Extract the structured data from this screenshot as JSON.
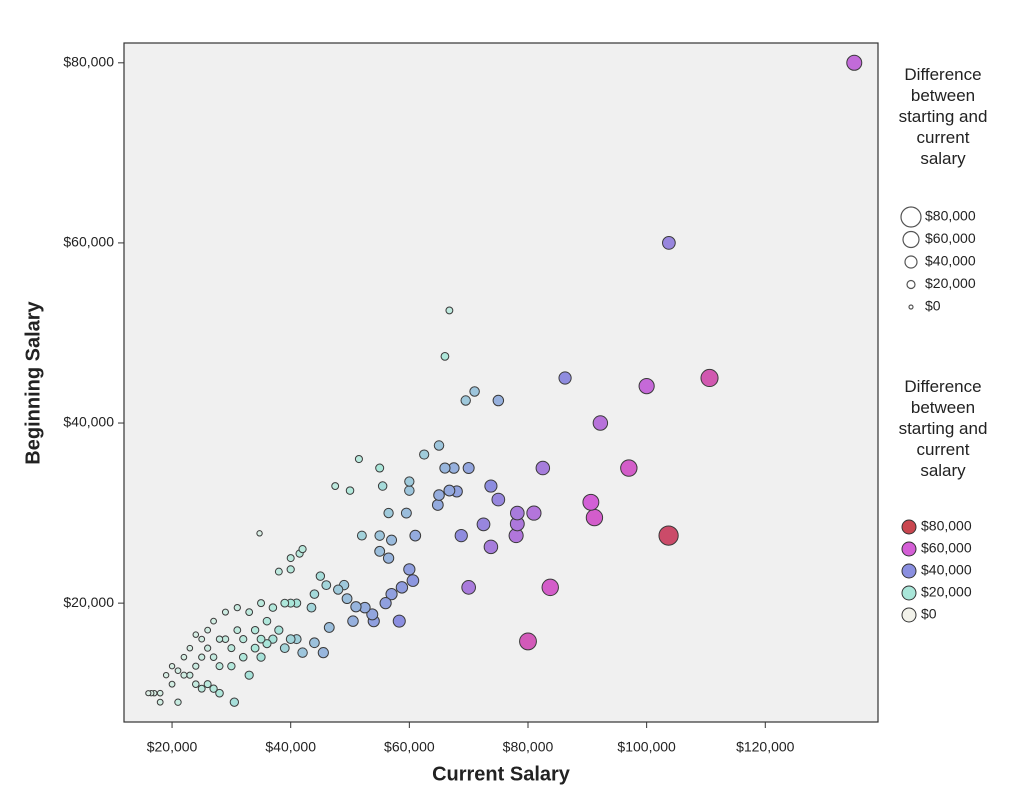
{
  "chart_data": {
    "type": "bubble",
    "x_label": "Current Salary",
    "y_label": "Beginning Salary",
    "xlim": [
      11900,
      139000
    ],
    "ylim": [
      6800,
      82200
    ],
    "xticks": [
      {
        "value": 20000,
        "label": "$20,000"
      },
      {
        "value": 40000,
        "label": "$40,000"
      },
      {
        "value": 60000,
        "label": "$60,000"
      },
      {
        "value": 80000,
        "label": "$80,000"
      },
      {
        "value": 100000,
        "label": "$100,000"
      },
      {
        "value": 120000,
        "label": "$120,000"
      }
    ],
    "yticks": [
      {
        "value": 20000,
        "label": "$20,000"
      },
      {
        "value": 40000,
        "label": "$40,000"
      },
      {
        "value": 60000,
        "label": "$60,000"
      },
      {
        "value": 80000,
        "label": "$80,000"
      }
    ],
    "x": [
      135000,
      103750,
      86250,
      100000,
      110600,
      92200,
      97000,
      82500,
      90600,
      91200,
      103700,
      81000,
      78200,
      78200,
      78000,
      83750,
      80000,
      70000,
      73750,
      72500,
      73750,
      75000,
      68750,
      66750,
      68000,
      67500,
      70000,
      65000,
      65000,
      60000,
      60600,
      58750,
      58300,
      57000,
      56000,
      54000,
      53750,
      52500,
      50500,
      51000,
      55000,
      55000,
      56500,
      56500,
      59500,
      60000,
      61000,
      62500,
      60000,
      64800,
      66000,
      66000,
      66750,
      69500,
      71000,
      75000,
      57000,
      52000,
      51500,
      50000,
      47500,
      55000,
      55500,
      46500,
      45500,
      44000,
      42000,
      41000,
      43500,
      44000,
      46000,
      48000,
      49000,
      49500,
      45000,
      40000,
      40000,
      41500,
      42000,
      34750,
      38000,
      40000,
      41000,
      39000,
      37000,
      38000,
      40000,
      37000,
      39000,
      30500,
      28000,
      26000,
      24000,
      22000,
      20000,
      18000,
      17000,
      16500,
      16000,
      18000,
      21000,
      25000,
      27000,
      20000,
      22000,
      24000,
      26000,
      28000,
      30000,
      32000,
      34000,
      36000,
      35000,
      33000,
      31000,
      29000,
      27000,
      25000,
      23000,
      21000,
      19000,
      24000,
      26000,
      28000,
      30000,
      32000,
      34000,
      36000,
      33000,
      35000,
      27000,
      29000,
      31000,
      25000,
      23000,
      35000
    ],
    "y": [
      80000,
      60000,
      45000,
      44100,
      45000,
      40000,
      35000,
      35000,
      31200,
      29500,
      27500,
      30000,
      30000,
      28800,
      27500,
      21750,
      15750,
      21750,
      26250,
      28750,
      33000,
      31500,
      27500,
      32500,
      32400,
      35000,
      35000,
      32000,
      37500,
      23750,
      22500,
      21750,
      18000,
      21000,
      20000,
      18000,
      18750,
      19500,
      18000,
      19600,
      25750,
      27500,
      25000,
      30000,
      30000,
      33500,
      27500,
      36500,
      32500,
      30900,
      35000,
      47400,
      52500,
      42500,
      43500,
      42500,
      27000,
      27500,
      36000,
      32500,
      33000,
      35000,
      33000,
      17300,
      14500,
      15600,
      14500,
      16000,
      19500,
      21000,
      22000,
      21500,
      22000,
      20500,
      23000,
      23750,
      25000,
      25500,
      26000,
      27750,
      23500,
      20000,
      20000,
      20000,
      19500,
      17000,
      16000,
      16000,
      15000,
      9000,
      10000,
      11000,
      11000,
      12000,
      11000,
      10000,
      10000,
      10000,
      10000,
      9000,
      9000,
      10500,
      10500,
      13000,
      14000,
      13000,
      15000,
      16000,
      15000,
      16000,
      17000,
      18000,
      20000,
      19000,
      19500,
      19000,
      18000,
      16000,
      15000,
      12500,
      12000,
      16500,
      17000,
      13000,
      13000,
      14000,
      15000,
      15500,
      12000,
      14000,
      14000,
      16000,
      17000,
      14000,
      12000,
      16000
    ],
    "sizes": [
      55000,
      43750,
      41250,
      55900,
      65600,
      52200,
      62000,
      47500,
      59400,
      61700,
      76200,
      51000,
      48200,
      49400,
      50500,
      62000,
      64250,
      48250,
      47500,
      43750,
      40750,
      43500,
      41250,
      34250,
      35600,
      32500,
      35000,
      33000,
      27500,
      36250,
      38100,
      37000,
      40300,
      36000,
      36000,
      36000,
      35000,
      33000,
      32500,
      31400,
      29250,
      27500,
      31500,
      26500,
      29500,
      26500,
      33500,
      26000,
      27500,
      33900,
      31000,
      18600,
      14250,
      27000,
      27500,
      32500,
      30000,
      24500,
      15500,
      17500,
      14500,
      20000,
      22500,
      29200,
      31000,
      28400,
      27500,
      25000,
      24000,
      23000,
      24000,
      26500,
      27000,
      29000,
      22000,
      16250,
      15000,
      16000,
      16000,
      7000,
      14500,
      20000,
      21000,
      19000,
      17500,
      21000,
      24000,
      21000,
      24000,
      21500,
      18000,
      15000,
      13000,
      10000,
      9000,
      8000,
      7000,
      6500,
      6000,
      9000,
      12000,
      14500,
      16500,
      7000,
      8000,
      11000,
      11000,
      12000,
      15000,
      16000,
      17000,
      18000,
      15000,
      14000,
      11500,
      10000,
      9000,
      9000,
      8000,
      8500,
      7000,
      7500,
      9000,
      15000,
      17000,
      18000,
      19000,
      20500,
      21000,
      21000,
      13000,
      13000,
      14000,
      11000,
      11000,
      19000
    ],
    "size_legend": {
      "title": "Difference between starting and current salary",
      "values": [
        80000,
        60000,
        40000,
        20000,
        0
      ],
      "labels": [
        "$80,000",
        "$60,000",
        "$40,000",
        "$20,000",
        "$0"
      ]
    },
    "color_legend": {
      "title": "Difference between starting and current salary",
      "values": [
        80000,
        60000,
        40000,
        20000,
        0
      ],
      "labels": [
        "$80,000",
        "$60,000",
        "$40,000",
        "$20,000",
        "$0"
      ],
      "colors": [
        "#c9464f",
        "#d45fd6",
        "#8a8fe0",
        "#a9e6d9",
        "#f2f2ea"
      ]
    }
  }
}
